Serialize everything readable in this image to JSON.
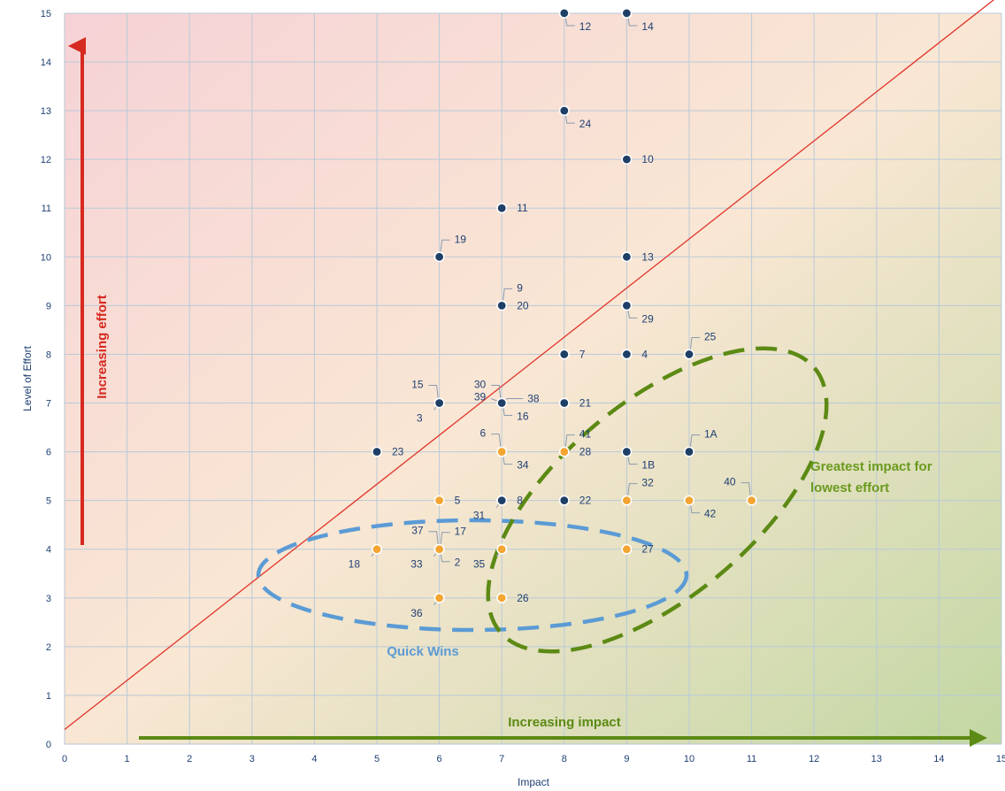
{
  "chart_data": {
    "type": "scatter",
    "xlabel": "Impact",
    "ylabel": "Level of Effort",
    "xlim": [
      0,
      15
    ],
    "ylim": [
      0,
      15
    ],
    "xticks": [
      0,
      1,
      2,
      3,
      4,
      5,
      6,
      7,
      8,
      9,
      10,
      11,
      12,
      13,
      14,
      15
    ],
    "yticks": [
      0,
      1,
      2,
      3,
      4,
      5,
      6,
      7,
      8,
      9,
      10,
      11,
      12,
      13,
      14,
      15
    ],
    "grid": true,
    "diagonal": {
      "from": [
        0,
        0.3
      ],
      "to": [
        15,
        15.4
      ],
      "color": "#e0342a"
    },
    "colors": {
      "navy": "#1e3f66",
      "orange": "#f4a531",
      "effort_arrow": "#d62a20",
      "impact_arrow": "#5c8a14",
      "quick_wins": "#5b9bd5",
      "greatest": "#5c8a14"
    },
    "series": [
      {
        "points": [
          {
            "x": 8,
            "y": 15,
            "label": "12",
            "lpos": "br"
          },
          {
            "x": 9,
            "y": 15,
            "label": "14",
            "lpos": "br"
          },
          {
            "x": 8,
            "y": 13,
            "label": "24",
            "lpos": "br"
          },
          {
            "x": 9,
            "y": 12,
            "label": "10",
            "lpos": "r"
          },
          {
            "x": 7,
            "y": 11,
            "label": "11",
            "lpos": "r"
          },
          {
            "x": 6,
            "y": 10,
            "label": "19",
            "lpos": "tr"
          },
          {
            "x": 9,
            "y": 10,
            "label": "13",
            "lpos": "r"
          },
          {
            "x": 7,
            "y": 9,
            "label": "9",
            "lpos": "tr"
          },
          {
            "x": 7,
            "y": 9,
            "label": "20",
            "lpos": "r"
          },
          {
            "x": 9,
            "y": 9,
            "label": "29",
            "lpos": "br"
          },
          {
            "x": 8,
            "y": 8,
            "label": "7",
            "lpos": "r"
          },
          {
            "x": 9,
            "y": 8,
            "label": "4",
            "lpos": "r"
          },
          {
            "x": 10,
            "y": 8,
            "label": "25",
            "lpos": "tr"
          },
          {
            "x": 6,
            "y": 7,
            "label": "15",
            "lpos": "tl"
          },
          {
            "x": 6,
            "y": 7,
            "label": "3",
            "lpos": "bl"
          },
          {
            "x": 7,
            "y": 7,
            "label": "30",
            "lpos": "tl"
          },
          {
            "x": 7,
            "y": 7,
            "label": "39",
            "lpos": "l"
          },
          {
            "x": 7,
            "y": 7,
            "label": "38",
            "lpos": "tr2"
          },
          {
            "x": 7,
            "y": 7,
            "label": "16",
            "lpos": "br"
          },
          {
            "x": 8,
            "y": 7,
            "label": "21",
            "lpos": "r"
          },
          {
            "x": 5,
            "y": 6,
            "label": "23",
            "lpos": "r"
          },
          {
            "x": 9,
            "y": 6,
            "label": "1B",
            "lpos": "br"
          },
          {
            "x": 10,
            "y": 6,
            "label": "1A",
            "lpos": "tr"
          },
          {
            "x": 7,
            "y": 5,
            "label": "8",
            "lpos": "r"
          },
          {
            "x": 7,
            "y": 5,
            "label": "31",
            "lpos": "bl"
          },
          {
            "x": 8,
            "y": 5,
            "label": "22",
            "lpos": "r"
          },
          {
            "x": 6,
            "y": 4,
            "label": "37",
            "lpos": "tl"
          },
          {
            "x": 6,
            "y": 4,
            "label": "17",
            "lpos": "tr"
          }
        ]
      },
      {
        "points": [
          {
            "x": 7,
            "y": 6,
            "label": "6",
            "lpos": "tl"
          },
          {
            "x": 7,
            "y": 6,
            "label": "34",
            "lpos": "br"
          },
          {
            "x": 8,
            "y": 6,
            "label": "41",
            "lpos": "tr"
          },
          {
            "x": 8,
            "y": 6,
            "label": "28",
            "lpos": "r"
          },
          {
            "x": 6,
            "y": 5,
            "label": "5",
            "lpos": "r"
          },
          {
            "x": 9,
            "y": 5,
            "label": "32",
            "lpos": "tr"
          },
          {
            "x": 10,
            "y": 5,
            "label": "42",
            "lpos": "br"
          },
          {
            "x": 11,
            "y": 5,
            "label": "40",
            "lpos": "tl"
          },
          {
            "x": 5,
            "y": 4,
            "label": "18",
            "lpos": "bl"
          },
          {
            "x": 6,
            "y": 4,
            "label": "33",
            "lpos": "bl"
          },
          {
            "x": 6,
            "y": 4,
            "label": "2",
            "lpos": "br"
          },
          {
            "x": 7,
            "y": 4,
            "label": "35",
            "lpos": "bl"
          },
          {
            "x": 9,
            "y": 4,
            "label": "27",
            "lpos": "r"
          },
          {
            "x": 6,
            "y": 3,
            "label": "36",
            "lpos": "bl"
          },
          {
            "x": 7,
            "y": 3,
            "label": "26",
            "lpos": "r"
          }
        ]
      }
    ],
    "annotations": {
      "effort_arrow_label": "Increasing effort",
      "impact_arrow_label": "Increasing impact",
      "quick_wins_label": "Quick Wins",
      "greatest_line1": "Greatest impact for",
      "greatest_line2": "lowest effort"
    }
  }
}
